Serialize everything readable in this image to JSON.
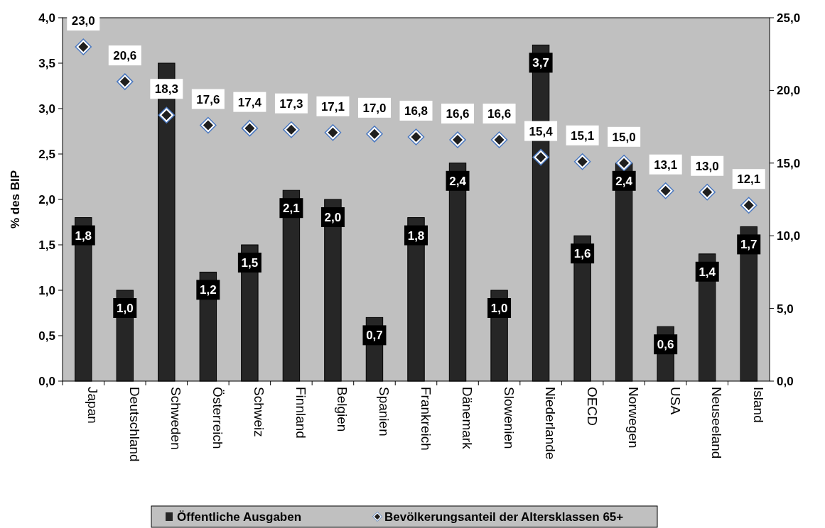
{
  "chart_data": {
    "type": "bar",
    "ylabel": "% des BIP",
    "categories": [
      "Japan",
      "Deutschland",
      "Schweden",
      "Österreich",
      "Schweiz",
      "Finnland",
      "Belgien",
      "Spanien",
      "Frankreich",
      "Dänemark",
      "Slowenien",
      "Niederlande",
      "OECD",
      "Norwegen",
      "USA",
      "Neuseeland",
      "Island"
    ],
    "series": [
      {
        "name": "Öffentliche Ausgaben",
        "color": "#262626",
        "values": [
          1.8,
          1.0,
          3.5,
          1.2,
          1.5,
          2.1,
          2.0,
          0.7,
          1.8,
          2.4,
          1.0,
          3.7,
          1.6,
          2.4,
          0.6,
          1.4,
          1.7
        ],
        "value_labels": [
          "1,8",
          "1,0",
          null,
          "1,2",
          "1,5",
          "2,1",
          "2,0",
          "0,7",
          "1,8",
          "2,4",
          "1,0",
          "3,7",
          "1,6",
          "2,4",
          "0,6",
          "1,4",
          "1,7"
        ]
      },
      {
        "name": "Bevölkerungsanteil der Altersklassen 65+",
        "type": "scatter",
        "axis": "y2",
        "marker": "diamond",
        "color": "#1f1f1f",
        "values": [
          23.0,
          20.6,
          18.3,
          17.6,
          17.4,
          17.3,
          17.1,
          17.0,
          16.8,
          16.6,
          16.6,
          15.4,
          15.1,
          15.0,
          13.1,
          13.0,
          12.1
        ],
        "value_labels": [
          "23,0",
          "20,6",
          "18,3",
          "17,6",
          "17,4",
          "17,3",
          "17,1",
          "17,0",
          "16,8",
          "16,6",
          "16,6",
          "15,4",
          "15,1",
          "15,0",
          "13,1",
          "13,0",
          "12,1"
        ]
      }
    ],
    "ylim": [
      0,
      4
    ],
    "yticks": [
      {
        "value": 0,
        "label": "0,0"
      },
      {
        "value": 0.5,
        "label": "0,5"
      },
      {
        "value": 1,
        "label": "1,0"
      },
      {
        "value": 1.5,
        "label": "1,5"
      },
      {
        "value": 2,
        "label": "2,0"
      },
      {
        "value": 2.5,
        "label": "2,5"
      },
      {
        "value": 3,
        "label": "3,0"
      },
      {
        "value": 3.5,
        "label": "3,5"
      },
      {
        "value": 4,
        "label": "4,0"
      }
    ],
    "y2lim": [
      0,
      25
    ],
    "y2ticks": [
      {
        "value": 0,
        "label": "0,0"
      },
      {
        "value": 5,
        "label": "5,0"
      },
      {
        "value": 10,
        "label": "10,0"
      },
      {
        "value": 15,
        "label": "15,0"
      },
      {
        "value": 20,
        "label": "20,0"
      },
      {
        "value": 25,
        "label": "25,0"
      }
    ],
    "legend": "bottom"
  }
}
